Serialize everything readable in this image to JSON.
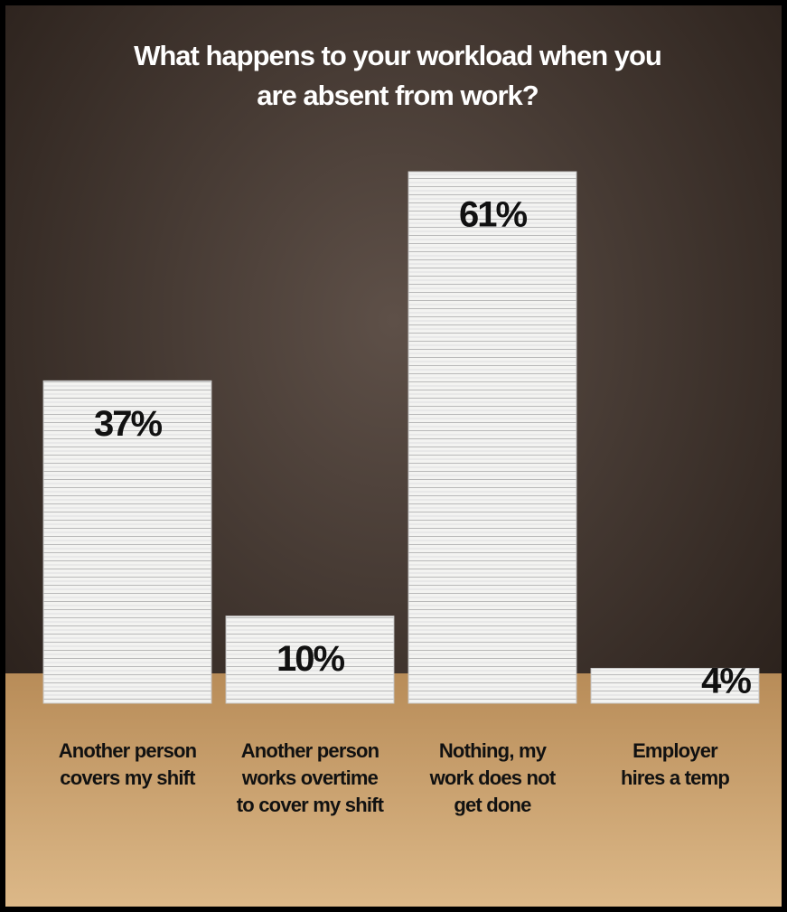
{
  "chart_data": {
    "type": "bar",
    "title": "What happens to your workload when you\nare absent from work?",
    "categories": [
      "Another person\ncovers my shift",
      "Another person\nworks overtime\nto cover my shift",
      "Nothing, my\nwork does not\nget done",
      "Employer\nhires a temp"
    ],
    "values": [
      37,
      10,
      61,
      4
    ],
    "value_labels": [
      "37%",
      "10%",
      "61%",
      "4%"
    ],
    "color": "#f2f2f0"
  }
}
